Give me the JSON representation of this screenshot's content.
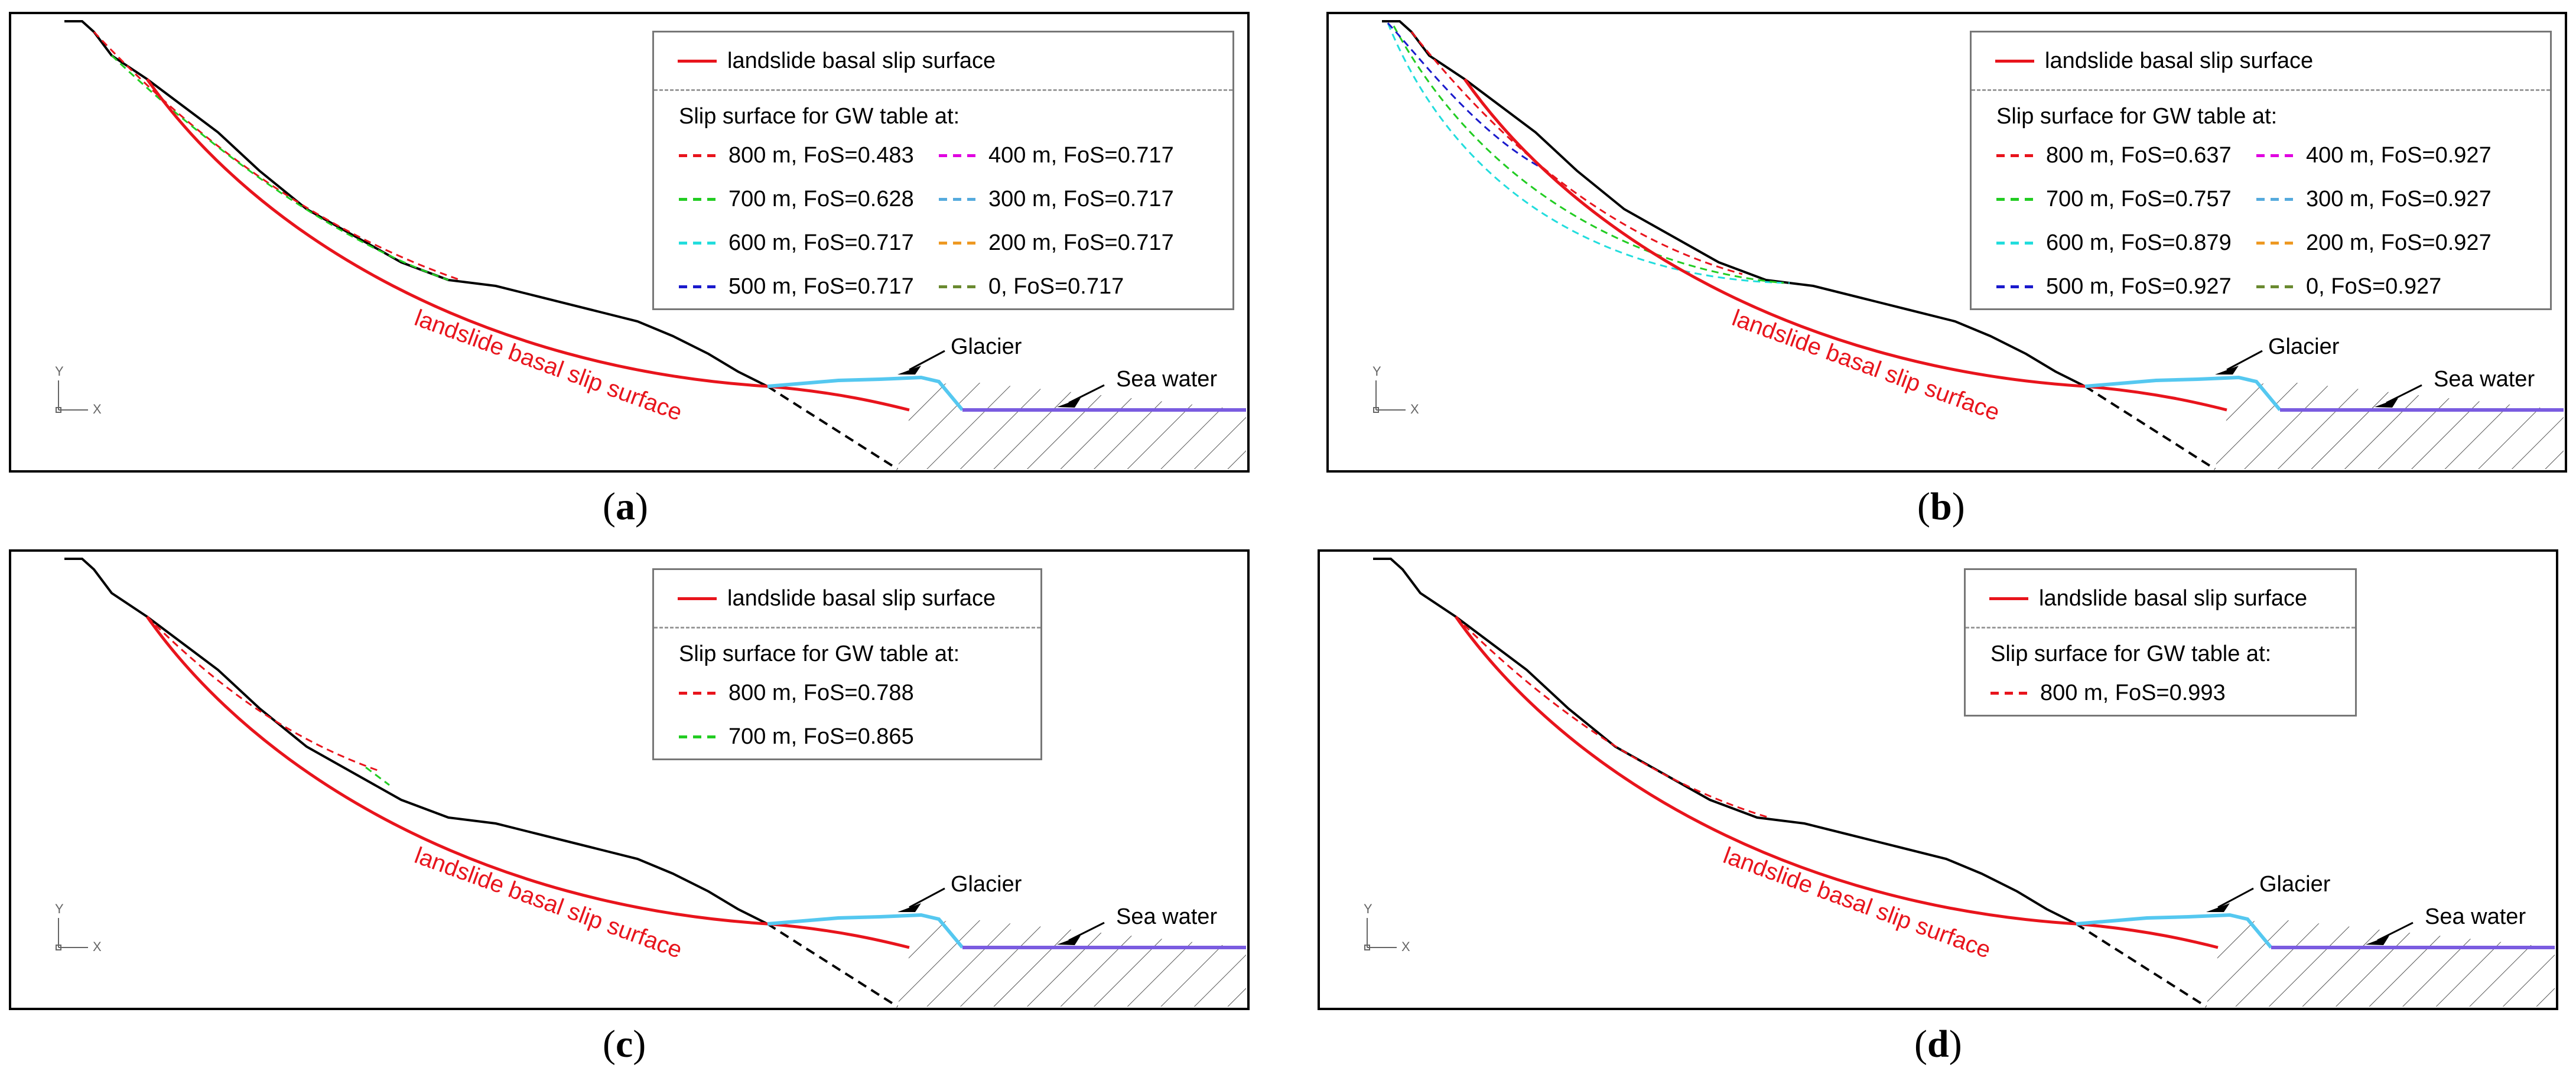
{
  "panels": [
    {
      "id": "a",
      "caption_letter": "a",
      "legend_title": "landslide basal slip surface",
      "gw_heading": "Slip surface for GW table at:",
      "entries": [
        {
          "label": "800 m, FoS=0.483",
          "color": "#e8141c"
        },
        {
          "label": "400 m, FoS=0.717",
          "color": "#e000e0"
        },
        {
          "label": "700 m, FoS=0.628",
          "color": "#22cc22"
        },
        {
          "label": "300 m, FoS=0.717",
          "color": "#55aadd"
        },
        {
          "label": "600 m, FoS=0.717",
          "color": "#22dddd"
        },
        {
          "label": "200 m, FoS=0.717",
          "color": "#ee9922"
        },
        {
          "label": "500 m, FoS=0.717",
          "color": "#1a1acc"
        },
        {
          "label": "0, FoS=0.717",
          "color": "#6a8a30"
        }
      ]
    },
    {
      "id": "b",
      "caption_letter": "b",
      "legend_title": "landslide basal slip surface",
      "gw_heading": "Slip surface for GW table at:",
      "entries": [
        {
          "label": "800 m, FoS=0.637",
          "color": "#e8141c"
        },
        {
          "label": "400 m, FoS=0.927",
          "color": "#e000e0"
        },
        {
          "label": "700 m, FoS=0.757",
          "color": "#22cc22"
        },
        {
          "label": "300 m, FoS=0.927",
          "color": "#55aadd"
        },
        {
          "label": "600 m, FoS=0.879",
          "color": "#22dddd"
        },
        {
          "label": "200 m, FoS=0.927",
          "color": "#ee9922"
        },
        {
          "label": "500 m, FoS=0.927",
          "color": "#1a1acc"
        },
        {
          "label": "0, FoS=0.927",
          "color": "#6a8a30"
        }
      ]
    },
    {
      "id": "c",
      "caption_letter": "c",
      "legend_title": "landslide basal slip surface",
      "gw_heading": "Slip surface for GW table at:",
      "entries": [
        {
          "label": "800 m, FoS=0.788",
          "color": "#e8141c"
        },
        {
          "label": "700 m, FoS=0.865",
          "color": "#22cc22"
        }
      ]
    },
    {
      "id": "d",
      "caption_letter": "d",
      "legend_title": "landslide basal slip surface",
      "gw_heading": "Slip surface for GW table at:",
      "entries": [
        {
          "label": "800 m, FoS=0.993",
          "color": "#e8141c"
        }
      ]
    }
  ],
  "labels": {
    "basal_curve": "landslide basal slip surface",
    "glacier": "Glacier",
    "sea_water": "Sea water",
    "axis_y": "Y",
    "axis_x": "X"
  },
  "colors": {
    "basal": "#e8141c",
    "glacier": "#55c8f0",
    "sea": "#7a5ce0",
    "terrain": "#000000"
  }
}
